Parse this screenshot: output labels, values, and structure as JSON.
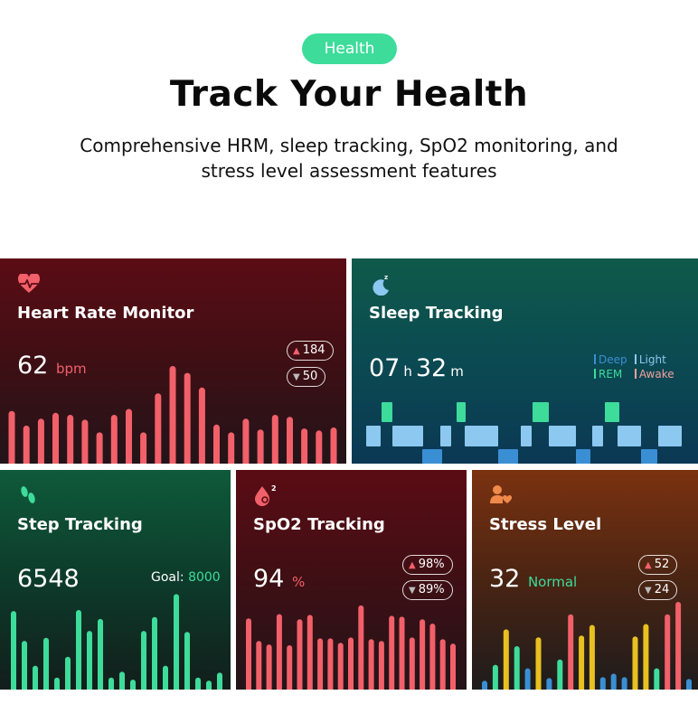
{
  "header": {
    "badge": "Health",
    "title": "Track Your Health",
    "subtitle_line1": "Comprehensive HRM, sleep tracking, SpO2 monitoring, and",
    "subtitle_line2": "stress level assessment features",
    "badge_color": "#3ddc9a"
  },
  "heart_rate": {
    "title": "Heart Rate Monitor",
    "icon": "heart-pulse-icon",
    "value": "62",
    "unit": "bpm",
    "max": "184",
    "min": "50",
    "accent": "#f2606a",
    "bars": [
      0.54,
      0.39,
      0.46,
      0.52,
      0.5,
      0.45,
      0.32,
      0.5,
      0.56,
      0.32,
      0.72,
      1.0,
      0.93,
      0.78,
      0.4,
      0.32,
      0.46,
      0.35,
      0.5,
      0.48,
      0.36,
      0.34,
      0.37
    ]
  },
  "sleep": {
    "title": "Sleep Tracking",
    "icon": "moon-sleep-icon",
    "hours": "07",
    "h_unit": "h",
    "minutes": "32",
    "m_unit": "m",
    "legend": {
      "deep": "Deep",
      "light": "Light",
      "rem": "REM",
      "awake": "Awake"
    },
    "colors": {
      "deep": "#3a8fd4",
      "light": "#8cc8ef",
      "rem": "#3ddc9a",
      "awake": "#f2a0a0"
    }
  },
  "steps": {
    "title": "Step Tracking",
    "icon": "footsteps-icon",
    "value": "6548",
    "goal_label": "Goal:",
    "goal_value": "8000",
    "accent": "#3ddc9a",
    "bars": [
      0.79,
      0.49,
      0.24,
      0.52,
      0.12,
      0.33,
      0.8,
      0.59,
      0.71,
      0.12,
      0.18,
      0.1,
      0.59,
      0.73,
      0.24,
      0.96,
      0.58,
      0.12,
      0.09,
      0.17
    ]
  },
  "spo2": {
    "title": "SpO2 Tracking",
    "icon": "blood-drop-o2-icon",
    "value": "94",
    "unit": "%",
    "max": "98%",
    "min": "89%",
    "accent": "#f2606a",
    "bars": [
      0.82,
      0.56,
      0.52,
      0.87,
      0.51,
      0.81,
      0.86,
      0.59,
      0.59,
      0.54,
      0.6,
      0.97,
      0.58,
      0.56,
      0.85,
      0.84,
      0.6,
      0.81,
      0.76,
      0.58,
      0.53
    ]
  },
  "stress": {
    "title": "Stress Level",
    "icon": "person-heart-icon",
    "value": "32",
    "status": "Normal",
    "max": "52",
    "min": "24",
    "bars": [
      {
        "v": 0.1,
        "c": "#3a8fd4"
      },
      {
        "v": 0.28,
        "c": "#3ddc9a"
      },
      {
        "v": 0.68,
        "c": "#e8c020"
      },
      {
        "v": 0.49,
        "c": "#3ddc9a"
      },
      {
        "v": 0.24,
        "c": "#3a8fd4"
      },
      {
        "v": 0.59,
        "c": "#e8c020"
      },
      {
        "v": 0.13,
        "c": "#3a8fd4"
      },
      {
        "v": 0.34,
        "c": "#3ddc9a"
      },
      {
        "v": 0.85,
        "c": "#f2606a"
      },
      {
        "v": 0.61,
        "c": "#e8c020"
      },
      {
        "v": 0.73,
        "c": "#e8c020"
      },
      {
        "v": 0.14,
        "c": "#3a8fd4"
      },
      {
        "v": 0.18,
        "c": "#3a8fd4"
      },
      {
        "v": 0.14,
        "c": "#3a8fd4"
      },
      {
        "v": 0.6,
        "c": "#e8c020"
      },
      {
        "v": 0.74,
        "c": "#e8c020"
      },
      {
        "v": 0.24,
        "c": "#3ddc9a"
      },
      {
        "v": 0.85,
        "c": "#f2606a"
      },
      {
        "v": 0.99,
        "c": "#f2606a"
      },
      {
        "v": 0.12,
        "c": "#3a8fd4"
      }
    ]
  }
}
